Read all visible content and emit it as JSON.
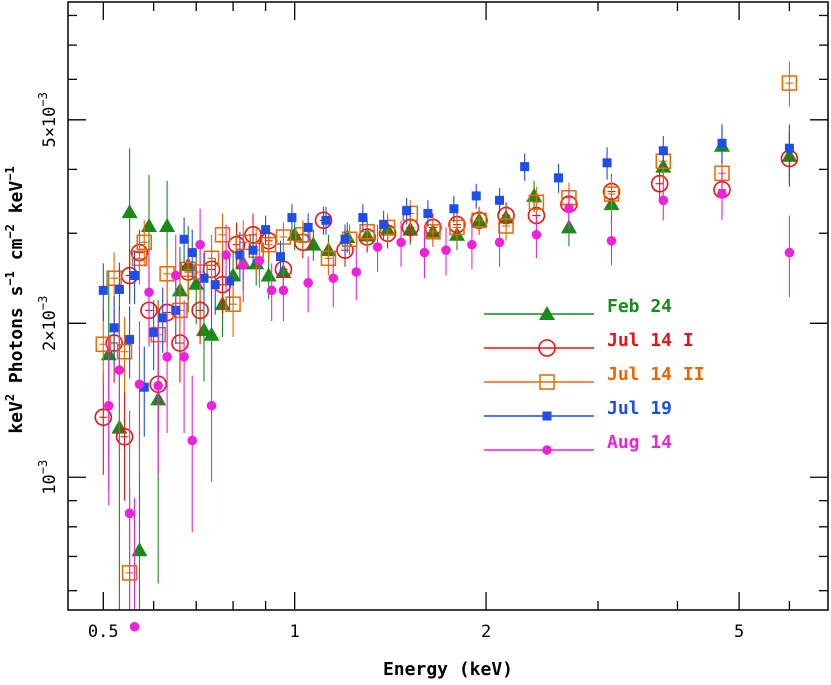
{
  "chart_data": {
    "type": "scatter",
    "title": "",
    "xlabel": "Energy (keV)",
    "ylabel": {
      "parts": [
        {
          "text": "keV",
          "sup": false
        },
        {
          "text": "2",
          "sup": true
        },
        {
          "text": " Photons s",
          "sup": false
        },
        {
          "text": "−1",
          "sup": true
        },
        {
          "text": " cm",
          "sup": false
        },
        {
          "text": "−2",
          "sup": true
        },
        {
          "text": " keV",
          "sup": false
        },
        {
          "text": "−1",
          "sup": true
        }
      ]
    },
    "xscale": "log",
    "yscale": "log",
    "xlim": [
      0.44,
      6.9
    ],
    "ylim": [
      0.00055,
      0.0085
    ],
    "xticks": [
      {
        "value": 0.5,
        "label": "0.5"
      },
      {
        "value": 1,
        "label": "1"
      },
      {
        "value": 2,
        "label": "2"
      },
      {
        "value": 5,
        "label": "5"
      }
    ],
    "yticks": [
      {
        "value": 0.001,
        "mantissa": "",
        "exponent": "−3",
        "label": "10"
      },
      {
        "value": 0.002,
        "mantissa": "2×",
        "exponent": "−3",
        "label": "10"
      },
      {
        "value": 0.005,
        "mantissa": "5×",
        "exponent": "−3",
        "label": "10"
      }
    ],
    "grid": false,
    "legend_position": "center-right",
    "series": [
      {
        "name": "Feb 24",
        "color": "#1a8a1a",
        "marker": "triangle",
        "points": [
          [
            0.51,
            0.00174,
            0.0008
          ],
          [
            0.53,
            0.00125,
            0.0009
          ],
          [
            0.55,
            0.0033,
            0.0011
          ],
          [
            0.57,
            0.00072,
            0.0007
          ],
          [
            0.59,
            0.0031,
            0.0008
          ],
          [
            0.61,
            0.00142,
            0.0008
          ],
          [
            0.63,
            0.0031,
            0.0007
          ],
          [
            0.66,
            0.00232,
            0.0005
          ],
          [
            0.68,
            0.0026,
            0.0005
          ],
          [
            0.7,
            0.00239,
            0.0004
          ],
          [
            0.72,
            0.00194,
            0.0004
          ],
          [
            0.74,
            0.0019,
            0.00035
          ],
          [
            0.77,
            0.00218,
            0.0003
          ],
          [
            0.8,
            0.00248,
            0.0003
          ],
          [
            0.83,
            0.00262,
            0.0003
          ],
          [
            0.87,
            0.00262,
            0.00025
          ],
          [
            0.91,
            0.00248,
            0.00025
          ],
          [
            0.96,
            0.00252,
            0.0002
          ],
          [
            1.0,
            0.00298,
            0.0002
          ],
          [
            1.07,
            0.00285,
            0.0002
          ],
          [
            1.13,
            0.00278,
            0.0002
          ],
          [
            1.21,
            0.00295,
            0.0002
          ],
          [
            1.3,
            0.00297,
            0.0002
          ],
          [
            1.4,
            0.00305,
            0.0002
          ],
          [
            1.52,
            0.00305,
            0.0002
          ],
          [
            1.65,
            0.00302,
            0.0002
          ],
          [
            1.8,
            0.00298,
            0.0002
          ],
          [
            1.95,
            0.00318,
            0.0002
          ],
          [
            2.15,
            0.00322,
            0.0002
          ],
          [
            2.38,
            0.00355,
            0.00025
          ],
          [
            2.7,
            0.00308,
            0.00025
          ],
          [
            3.15,
            0.00342,
            0.0003
          ],
          [
            3.8,
            0.00405,
            0.0003
          ],
          [
            4.7,
            0.00445,
            0.0004
          ],
          [
            6.0,
            0.00425,
            0.0005
          ]
        ]
      },
      {
        "name": "Jul 14 I",
        "color": "#ee1111",
        "marker": "circle",
        "points": [
          [
            0.5,
            0.00131,
            0.0003
          ],
          [
            0.52,
            0.00183,
            0.0003
          ],
          [
            0.54,
            0.0012,
            0.0003
          ],
          [
            0.55,
            0.00248,
            0.0003
          ],
          [
            0.57,
            0.00275,
            0.0003
          ],
          [
            0.59,
            0.00212,
            0.0003
          ],
          [
            0.61,
            0.00152,
            0.0003
          ],
          [
            0.63,
            0.0021,
            0.0003
          ],
          [
            0.66,
            0.00183,
            0.0003
          ],
          [
            0.68,
            0.00252,
            0.0003
          ],
          [
            0.71,
            0.00212,
            0.0003
          ],
          [
            0.74,
            0.00255,
            0.0003
          ],
          [
            0.77,
            0.00238,
            0.0003
          ],
          [
            0.81,
            0.00285,
            0.0003
          ],
          [
            0.86,
            0.00298,
            0.0003
          ],
          [
            0.91,
            0.0029,
            0.0002
          ],
          [
            0.96,
            0.00255,
            0.0002
          ],
          [
            1.03,
            0.00288,
            0.0002
          ],
          [
            1.11,
            0.00318,
            0.0002
          ],
          [
            1.2,
            0.00278,
            0.0002
          ],
          [
            1.3,
            0.00295,
            0.0002
          ],
          [
            1.4,
            0.003,
            0.0002
          ],
          [
            1.52,
            0.00308,
            0.0002
          ],
          [
            1.65,
            0.00308,
            0.0002
          ],
          [
            1.8,
            0.00312,
            0.0002
          ],
          [
            1.95,
            0.00318,
            0.0002
          ],
          [
            2.15,
            0.00325,
            0.0002
          ],
          [
            2.4,
            0.00325,
            0.00025
          ],
          [
            2.7,
            0.00342,
            0.00025
          ],
          [
            3.15,
            0.00362,
            0.0003
          ],
          [
            3.75,
            0.00375,
            0.0003
          ],
          [
            4.7,
            0.00365,
            0.0004
          ],
          [
            6.0,
            0.0042,
            0.0005
          ]
        ]
      },
      {
        "name": "Jul 14 II",
        "color": "#ee6600",
        "marker": "square",
        "points": [
          [
            0.5,
            0.00182,
            0.0003
          ],
          [
            0.52,
            0.00245,
            0.0003
          ],
          [
            0.54,
            0.00176,
            0.0003
          ],
          [
            0.55,
            0.00065,
            0.0003
          ],
          [
            0.57,
            0.00268,
            0.0003
          ],
          [
            0.58,
            0.00288,
            0.0003
          ],
          [
            0.61,
            0.0019,
            0.0003
          ],
          [
            0.63,
            0.0025,
            0.0003
          ],
          [
            0.66,
            0.00212,
            0.0003
          ],
          [
            0.68,
            0.00255,
            0.0003
          ],
          [
            0.71,
            0.00252,
            0.0003
          ],
          [
            0.74,
            0.00268,
            0.0003
          ],
          [
            0.77,
            0.00298,
            0.0003
          ],
          [
            0.8,
            0.00218,
            0.0003
          ],
          [
            0.83,
            0.00288,
            0.0003
          ],
          [
            0.87,
            0.00278,
            0.0003
          ],
          [
            0.91,
            0.00285,
            0.0002
          ],
          [
            0.96,
            0.00295,
            0.0002
          ],
          [
            1.03,
            0.00298,
            0.0002
          ],
          [
            1.13,
            0.00268,
            0.0002
          ],
          [
            1.22,
            0.00292,
            0.0002
          ],
          [
            1.3,
            0.00302,
            0.0002
          ],
          [
            1.4,
            0.00308,
            0.0002
          ],
          [
            1.52,
            0.00328,
            0.0002
          ],
          [
            1.65,
            0.00302,
            0.0002
          ],
          [
            1.8,
            0.00308,
            0.0002
          ],
          [
            1.95,
            0.00318,
            0.0002
          ],
          [
            2.15,
            0.0031,
            0.0002
          ],
          [
            2.4,
            0.00345,
            0.00025
          ],
          [
            2.7,
            0.00352,
            0.00025
          ],
          [
            3.15,
            0.00358,
            0.0003
          ],
          [
            3.8,
            0.00415,
            0.0003
          ],
          [
            4.7,
            0.00393,
            0.0004
          ],
          [
            6.0,
            0.0059,
            0.0006
          ]
        ]
      },
      {
        "name": "Jul 19",
        "color": "#1e4ee8",
        "marker": "square-small",
        "points": [
          [
            0.5,
            0.00232,
            0.0003
          ],
          [
            0.52,
            0.00196,
            0.0003
          ],
          [
            0.53,
            0.00233,
            0.0003
          ],
          [
            0.55,
            0.00186,
            0.0003
          ],
          [
            0.56,
            0.00248,
            0.0003
          ],
          [
            0.58,
            0.0015,
            0.0003
          ],
          [
            0.6,
            0.00192,
            0.0003
          ],
          [
            0.62,
            0.00205,
            0.0003
          ],
          [
            0.65,
            0.00212,
            0.0003
          ],
          [
            0.67,
            0.00292,
            0.0003
          ],
          [
            0.69,
            0.00275,
            0.0003
          ],
          [
            0.72,
            0.00245,
            0.0003
          ],
          [
            0.75,
            0.00238,
            0.0003
          ],
          [
            0.79,
            0.00242,
            0.0003
          ],
          [
            0.82,
            0.00272,
            0.0003
          ],
          [
            0.86,
            0.00278,
            0.0002
          ],
          [
            0.9,
            0.00305,
            0.0002
          ],
          [
            0.95,
            0.0027,
            0.0002
          ],
          [
            0.99,
            0.00322,
            0.0002
          ],
          [
            1.05,
            0.00308,
            0.0002
          ],
          [
            1.12,
            0.00318,
            0.0002
          ],
          [
            1.2,
            0.00292,
            0.0002
          ],
          [
            1.28,
            0.00322,
            0.0002
          ],
          [
            1.38,
            0.00312,
            0.0002
          ],
          [
            1.5,
            0.00332,
            0.0002
          ],
          [
            1.62,
            0.00328,
            0.0002
          ],
          [
            1.78,
            0.00335,
            0.0002
          ],
          [
            1.93,
            0.00355,
            0.0002
          ],
          [
            2.1,
            0.00348,
            0.0002
          ],
          [
            2.3,
            0.00405,
            0.00025
          ],
          [
            2.6,
            0.00385,
            0.00025
          ],
          [
            3.1,
            0.00412,
            0.0003
          ],
          [
            3.8,
            0.00435,
            0.0003
          ],
          [
            4.7,
            0.0045,
            0.0004
          ],
          [
            6.0,
            0.0044,
            0.0005
          ]
        ]
      },
      {
        "name": "Aug 14",
        "color": "#ee22dd",
        "marker": "circle-filled",
        "points": [
          [
            0.51,
            0.00138,
            0.0005
          ],
          [
            0.53,
            0.00162,
            0.0005
          ],
          [
            0.55,
            0.00085,
            0.0005
          ],
          [
            0.56,
            0.00051,
            0.0004
          ],
          [
            0.57,
            0.00152,
            0.0005
          ],
          [
            0.59,
            0.0023,
            0.0005
          ],
          [
            0.61,
            0.00151,
            0.0005
          ],
          [
            0.63,
            0.00172,
            0.0005
          ],
          [
            0.65,
            0.00248,
            0.0005
          ],
          [
            0.67,
            0.00172,
            0.0005
          ],
          [
            0.69,
            0.00118,
            0.0004
          ],
          [
            0.71,
            0.00285,
            0.0005
          ],
          [
            0.74,
            0.00138,
            0.0004
          ],
          [
            0.78,
            0.00272,
            0.0004
          ],
          [
            0.83,
            0.0026,
            0.0004
          ],
          [
            0.88,
            0.00265,
            0.0003
          ],
          [
            0.92,
            0.00232,
            0.0003
          ],
          [
            0.96,
            0.00232,
            0.0003
          ],
          [
            1.05,
            0.0024,
            0.0003
          ],
          [
            1.15,
            0.00245,
            0.0003
          ],
          [
            1.25,
            0.00252,
            0.0003
          ],
          [
            1.35,
            0.00282,
            0.0003
          ],
          [
            1.47,
            0.00288,
            0.0003
          ],
          [
            1.6,
            0.00275,
            0.0003
          ],
          [
            1.73,
            0.00278,
            0.0003
          ],
          [
            1.9,
            0.00285,
            0.0003
          ],
          [
            2.1,
            0.00288,
            0.0003
          ],
          [
            2.4,
            0.00298,
            0.0003
          ],
          [
            2.7,
            0.00335,
            0.0003
          ],
          [
            3.15,
            0.0029,
            0.0003
          ],
          [
            3.8,
            0.00348,
            0.0003
          ],
          [
            4.7,
            0.00358,
            0.0004
          ],
          [
            6.0,
            0.00275,
            0.0005
          ]
        ]
      }
    ]
  }
}
